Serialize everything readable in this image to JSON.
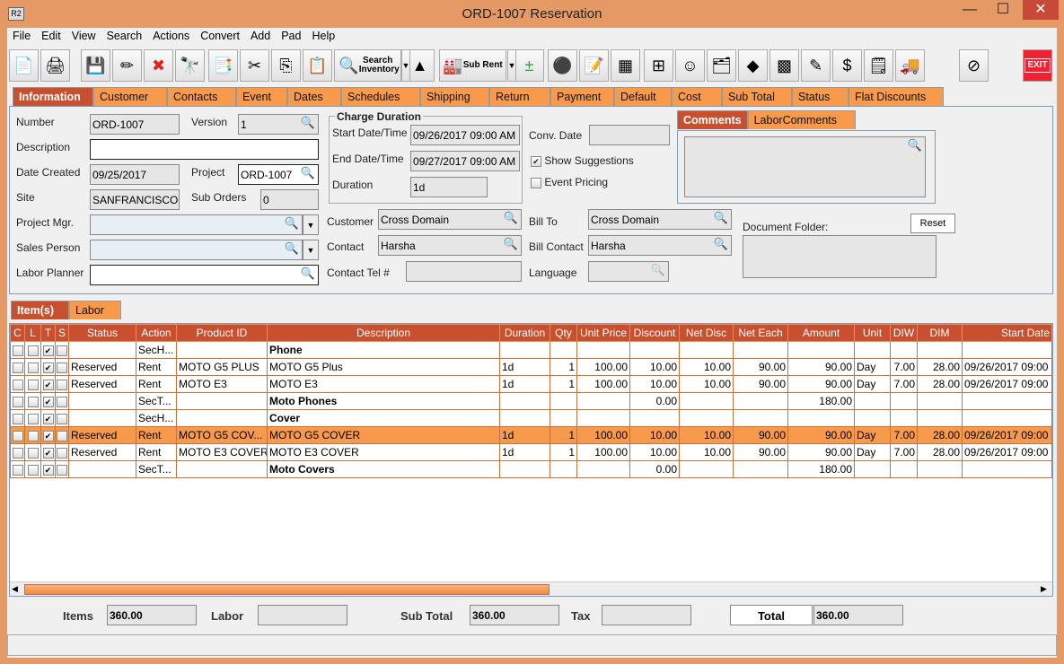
{
  "window": {
    "title": "ORD-1007 Reservation",
    "app_icon": "R2",
    "minimize": "—",
    "maximize": "☐",
    "close": "✕"
  },
  "menu": [
    "File",
    "Edit",
    "View",
    "Search",
    "Actions",
    "Convert",
    "Add",
    "Pad",
    "Help"
  ],
  "toolbar": {
    "search_inventory": "Search Inventory",
    "sub_rent": "Sub Rent",
    "exit": "EXIT",
    "icons": [
      "new-document-icon",
      "print-icon",
      "save-icon",
      "edit-pencil-icon",
      "delete-x-icon",
      "binoculars-icon",
      "convert-document-icon",
      "cut-scissors-icon",
      "copy-icon",
      "paste-icon",
      "search-inventory-icon",
      "shapes-icon",
      "sub-rent-factory-icon",
      "add-remove-icon",
      "balls-icon",
      "notepad-icon",
      "calculator-icon",
      "org-chart-icon",
      "smiley-icon",
      "folder-clock-icon",
      "eraser-icon",
      "cubes-icon",
      "form-edit-icon",
      "money-arrow-icon",
      "notes-icon",
      "truck-icon",
      "disabled-icon",
      "exit-icon"
    ]
  },
  "tabs": [
    "Information",
    "Customer",
    "Contacts",
    "Event",
    "Dates",
    "Schedules",
    "Shipping",
    "Return",
    "Payment",
    "Default",
    "Cost",
    "Sub Total",
    "Status",
    "Flat Discounts"
  ],
  "info": {
    "number_label": "Number",
    "number": "ORD-1007",
    "version_label": "Version",
    "version": "1",
    "description_label": "Description",
    "description": "",
    "date_created_label": "Date Created",
    "date_created": "09/25/2017",
    "project_label": "Project",
    "project": "ORD-1007",
    "site_label": "Site",
    "site": "SANFRANCISCO",
    "sub_orders_label": "Sub Orders",
    "sub_orders": "0",
    "project_mgr_label": "Project Mgr.",
    "project_mgr": "",
    "sales_person_label": "Sales Person",
    "sales_person": "",
    "labor_planner_label": "Labor Planner",
    "labor_planner": "",
    "charge_duration_title": "Charge Duration",
    "start_label": "Start Date/Time",
    "start": "09/26/2017 09:00 AM",
    "end_label": "End Date/Time",
    "end": "09/27/2017 09:00 AM",
    "duration_label": "Duration",
    "duration": "1d",
    "conv_date_label": "Conv. Date",
    "conv_date": "",
    "show_suggestions": "Show Suggestions",
    "event_pricing": "Event Pricing",
    "comments_tab": "Comments",
    "labor_comments_tab": "LaborComments",
    "customer_label": "Customer",
    "customer": "Cross Domain",
    "contact_label": "Contact",
    "contact": "Harsha",
    "contact_tel_label": "Contact Tel #",
    "contact_tel": "",
    "bill_to_label": "Bill To",
    "bill_to": "Cross Domain",
    "bill_contact_label": "Bill Contact",
    "bill_contact": "Harsha",
    "language_label": "Language",
    "language": "",
    "document_folder_label": "Document Folder:",
    "reset": "Reset"
  },
  "subtabs": [
    "Item(s)",
    "Labor"
  ],
  "grid": {
    "columns": [
      "C",
      "L",
      "T",
      "S",
      "Status",
      "Action",
      "Product ID",
      "Description",
      "Duration",
      "Qty",
      "Unit Price",
      "Discount",
      "Net Disc",
      "Net Each",
      "Amount",
      "Unit",
      "DIW",
      "DIM",
      "Start Date"
    ],
    "rows": [
      {
        "t": true,
        "status": "",
        "action": "SecH...",
        "product": "",
        "desc": "Phone",
        "bold": true,
        "duration": "",
        "qty": "",
        "unit_price": "",
        "discount": "",
        "net_disc": "",
        "net_each": "",
        "amount": "",
        "unit": "",
        "diw": "",
        "dim": "",
        "start": ""
      },
      {
        "t": true,
        "status": "Reserved",
        "action": "Rent",
        "product": "MOTO G5 PLUS",
        "desc": "MOTO G5 Plus",
        "duration": "1d",
        "qty": "1",
        "unit_price": "100.00",
        "discount": "10.00",
        "net_disc": "10.00",
        "net_each": "90.00",
        "amount": "90.00",
        "unit": "Day",
        "diw": "7.00",
        "dim": "28.00",
        "start": "09/26/2017 09:00"
      },
      {
        "t": true,
        "status": "Reserved",
        "action": "Rent",
        "product": "MOTO E3",
        "desc": "MOTO E3",
        "duration": "1d",
        "qty": "1",
        "unit_price": "100.00",
        "discount": "10.00",
        "net_disc": "10.00",
        "net_each": "90.00",
        "amount": "90.00",
        "unit": "Day",
        "diw": "7.00",
        "dim": "28.00",
        "start": "09/26/2017 09:00"
      },
      {
        "t": true,
        "status": "",
        "action": "SecT...",
        "product": "",
        "desc": "Moto Phones",
        "bold": true,
        "duration": "",
        "qty": "",
        "unit_price": "",
        "discount": "0.00",
        "net_disc": "",
        "net_each": "",
        "amount": "180.00",
        "unit": "",
        "diw": "",
        "dim": "",
        "start": ""
      },
      {
        "t": true,
        "status": "",
        "action": "SecH...",
        "product": "",
        "desc": "Cover",
        "bold": true,
        "duration": "",
        "qty": "",
        "unit_price": "",
        "discount": "",
        "net_disc": "",
        "net_each": "",
        "amount": "",
        "unit": "",
        "diw": "",
        "dim": "",
        "start": ""
      },
      {
        "t": true,
        "selected": true,
        "status": "Reserved",
        "action": "Rent",
        "product": "MOTO G5 COV...",
        "desc": "MOTO G5 COVER",
        "duration": "1d",
        "qty": "1",
        "unit_price": "100.00",
        "discount": "10.00",
        "net_disc": "10.00",
        "net_each": "90.00",
        "amount": "90.00",
        "unit": "Day",
        "diw": "7.00",
        "dim": "28.00",
        "start": "09/26/2017 09:00"
      },
      {
        "t": true,
        "status": "Reserved",
        "action": "Rent",
        "product": "MOTO E3 COVER",
        "desc": "MOTO E3 COVER",
        "duration": "1d",
        "qty": "1",
        "unit_price": "100.00",
        "discount": "10.00",
        "net_disc": "10.00",
        "net_each": "90.00",
        "amount": "90.00",
        "unit": "Day",
        "diw": "7.00",
        "dim": "28.00",
        "start": "09/26/2017 09:00"
      },
      {
        "t": true,
        "status": "",
        "action": "SecT...",
        "product": "",
        "desc": "Moto Covers",
        "bold": true,
        "duration": "",
        "qty": "",
        "unit_price": "",
        "discount": "0.00",
        "net_disc": "",
        "net_each": "",
        "amount": "180.00",
        "unit": "",
        "diw": "",
        "dim": "",
        "start": ""
      }
    ]
  },
  "totals": {
    "items_label": "Items",
    "items": "360.00",
    "labor_label": "Labor",
    "labor": "",
    "sub_total_label": "Sub Total",
    "sub_total": "360.00",
    "tax_label": "Tax",
    "tax": "",
    "total_label": "Total",
    "total": "360.00"
  },
  "colors": {
    "accent": "#C8502E",
    "tab": "#F79A4C",
    "selected_row": "#F79A4C",
    "window": "#E59A66"
  }
}
